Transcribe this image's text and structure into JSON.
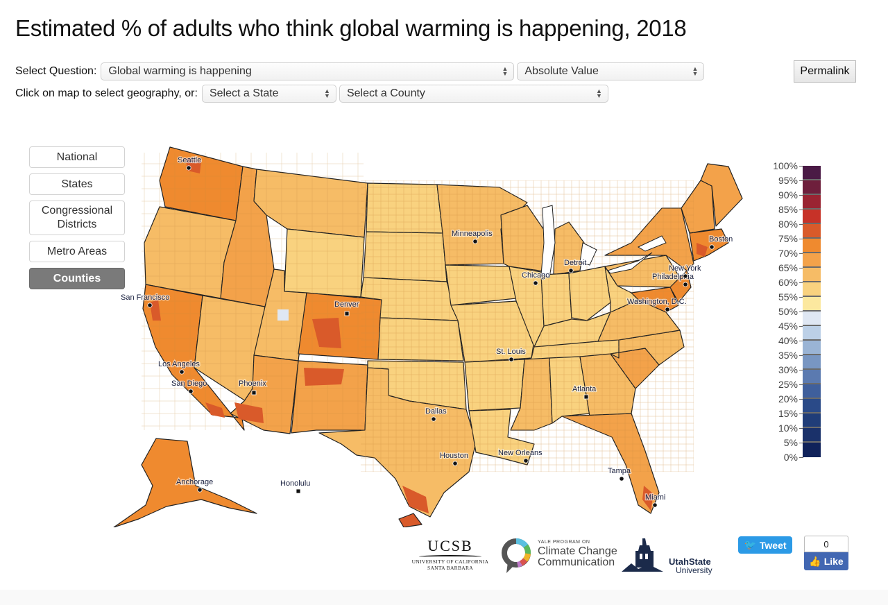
{
  "page": {
    "title": "Estimated % of adults who think global warming is happening, 2018"
  },
  "controls": {
    "select_question_label": "Select Question:",
    "question_value": "Global warming is happening",
    "mode_value": "Absolute Value",
    "geography_label": "Click on map to select geography, or:",
    "state_placeholder": "Select a State",
    "county_placeholder": "Select a County",
    "permalink_label": "Permalink"
  },
  "geography_buttons": [
    {
      "label": "National",
      "active": false
    },
    {
      "label": "States",
      "active": false
    },
    {
      "label": "Congressional Districts",
      "active": false
    },
    {
      "label": "Metro Areas",
      "active": false
    },
    {
      "label": "Counties",
      "active": true
    }
  ],
  "legend": {
    "labels": [
      "100%",
      "95%",
      "90%",
      "85%",
      "80%",
      "75%",
      "70%",
      "65%",
      "60%",
      "55%",
      "50%",
      "45%",
      "40%",
      "35%",
      "30%",
      "25%",
      "20%",
      "15%",
      "10%",
      "5%",
      "0%"
    ],
    "colors": [
      "#4a1a45",
      "#6e1f3c",
      "#9a2432",
      "#c73228",
      "#d95a2a",
      "#ef8a2f",
      "#f3a24a",
      "#f6bc66",
      "#f9d27f",
      "#fce89f",
      "#dfe7f3",
      "#bcd0e7",
      "#9ab4d5",
      "#7896c2",
      "#5b7ab0",
      "#3f5f9c",
      "#2a4a88",
      "#203d78",
      "#1a316a",
      "#10225a"
    ]
  },
  "cities": [
    {
      "name": "Seattle"
    },
    {
      "name": "San Francisco"
    },
    {
      "name": "Los Angeles"
    },
    {
      "name": "San Diego"
    },
    {
      "name": "Phoenix"
    },
    {
      "name": "Denver"
    },
    {
      "name": "Dallas"
    },
    {
      "name": "Houston"
    },
    {
      "name": "Minneapolis"
    },
    {
      "name": "Chicago"
    },
    {
      "name": "St. Louis"
    },
    {
      "name": "Detroit"
    },
    {
      "name": "Atlanta"
    },
    {
      "name": "New Orleans"
    },
    {
      "name": "Tampa"
    },
    {
      "name": "Miami"
    },
    {
      "name": "Washington, D.C."
    },
    {
      "name": "Philadelphia"
    },
    {
      "name": "New York"
    },
    {
      "name": "Boston"
    },
    {
      "name": "Anchorage"
    },
    {
      "name": "Honolulu"
    }
  ],
  "footer": {
    "ucsb_main": "UCSB",
    "ucsb_sub1": "UNIVERSITY OF CALIFORNIA",
    "ucsb_sub2": "SANTA BARBARA",
    "yale_small": "YALE PROGRAM ON",
    "yale_line1": "Climate Change",
    "yale_line2": "Communication",
    "usu_line1": "UtahState",
    "usu_line2": "University",
    "tweet_label": "Tweet",
    "like_count": "0",
    "like_label": "Like"
  },
  "colors": {
    "accent_active": "#7a7a7a",
    "twitter": "#2b9ae6",
    "facebook": "#4267b2"
  }
}
